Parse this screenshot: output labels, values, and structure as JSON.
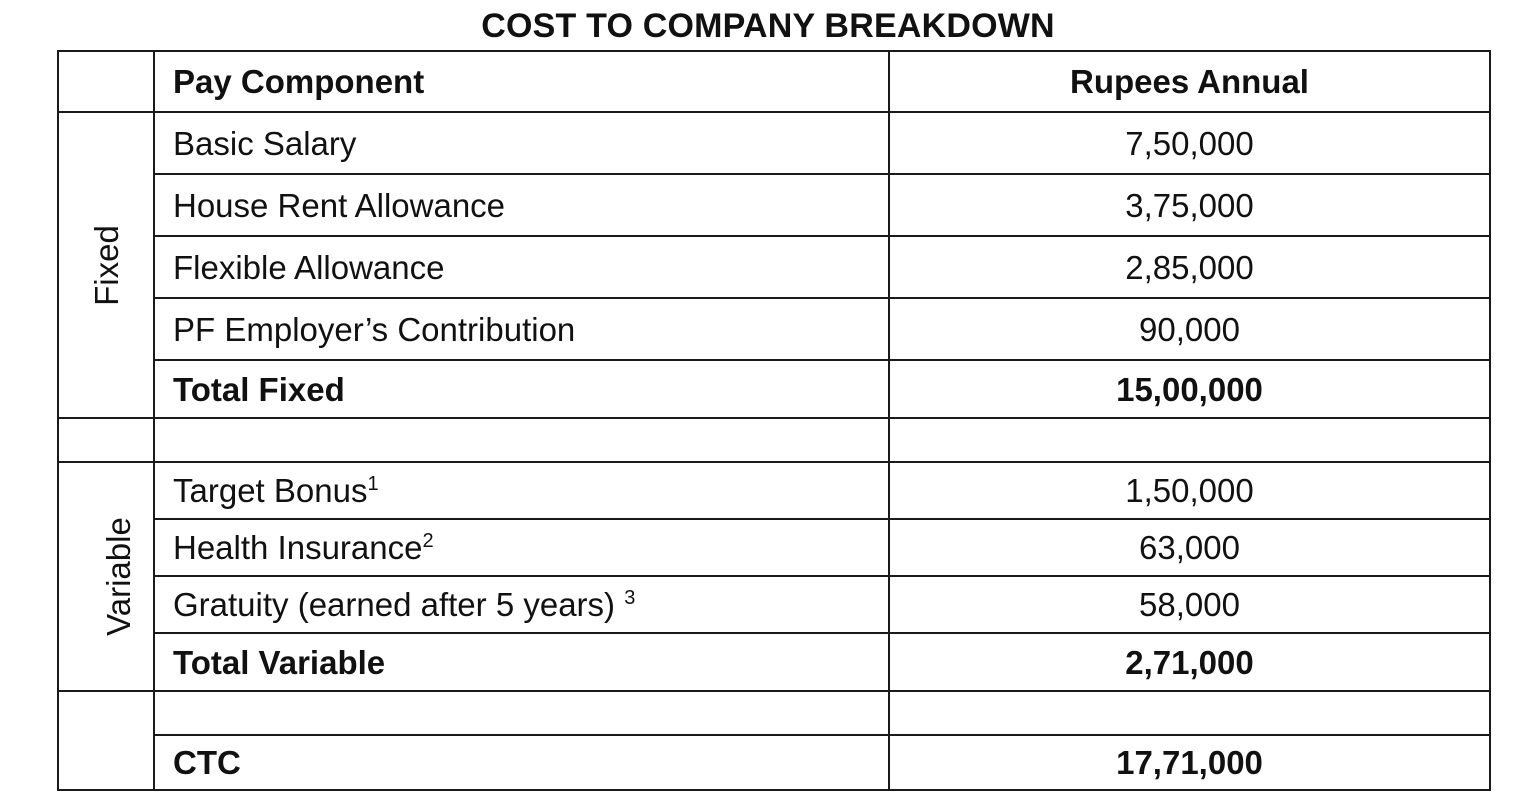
{
  "title": "COST TO COMPANY BREAKDOWN",
  "header": {
    "component": "Pay Component",
    "amount": "Rupees Annual"
  },
  "groups": {
    "fixed": "Fixed",
    "variable": "Variable"
  },
  "fixed_items": [
    {
      "label": "Basic Salary",
      "amount": "7,50,000"
    },
    {
      "label": "House Rent Allowance",
      "amount": "3,75,000"
    },
    {
      "label": "Flexible Allowance",
      "amount": "2,85,000"
    },
    {
      "label": "PF Employer’s Contribution",
      "amount": "90,000"
    }
  ],
  "fixed_total": {
    "label": "Total Fixed",
    "amount": "15,00,000"
  },
  "variable_items": [
    {
      "label": "Target Bonus",
      "note": "1",
      "amount": "1,50,000"
    },
    {
      "label": "Health Insurance",
      "note": "2",
      "amount": "63,000"
    },
    {
      "label": "Gratuity (earned after 5 years) ",
      "note": "3",
      "amount": "58,000"
    }
  ],
  "variable_total": {
    "label": "Total Variable",
    "amount": "2,71,000"
  },
  "ctc": {
    "label": "CTC",
    "amount": "17,71,000"
  }
}
